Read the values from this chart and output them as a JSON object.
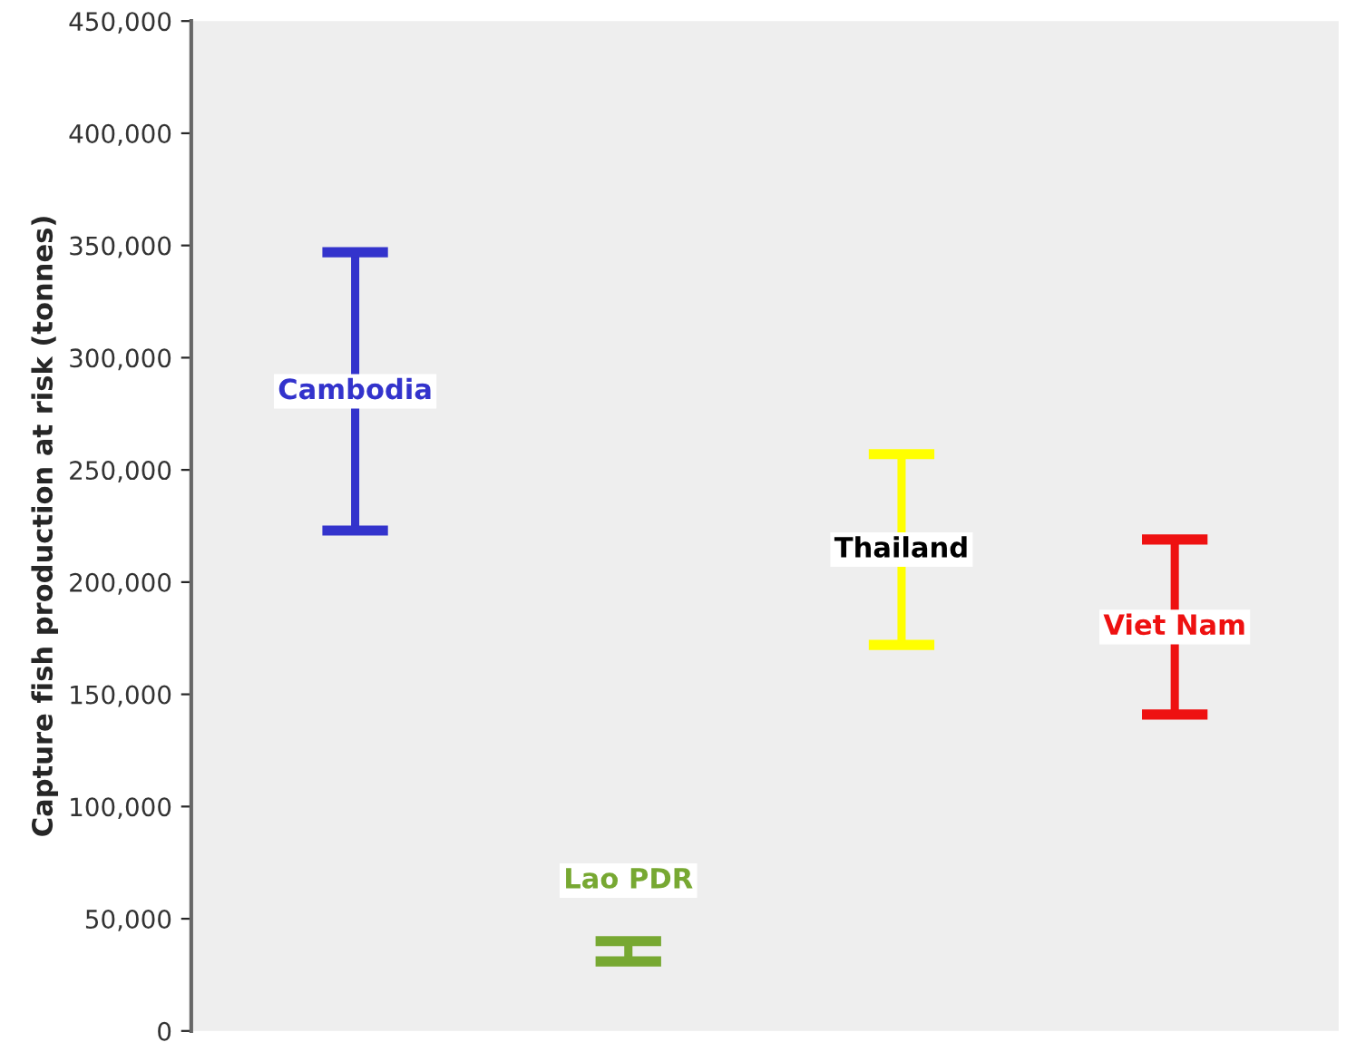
{
  "chart_data": {
    "type": "bar",
    "ylabel": "Capture fish production at risk (tonnes)",
    "categories": [
      "Cambodia",
      "Lao PDR",
      "Thailand",
      "Viet Nam"
    ],
    "base": [
      223000,
      31000,
      172000,
      141000
    ],
    "values": [
      124000,
      9000,
      85000,
      78000
    ],
    "colors": [
      "#3333cc",
      "#77a832",
      "#ffff00",
      "#ee1111"
    ],
    "ylim": [
      0,
      450000
    ],
    "yticks": [
      0,
      {
        "value": 50000,
        "label": "50,000"
      },
      {
        "value": 100000,
        "label": "100,000"
      },
      {
        "value": 150000,
        "label": "150,000"
      },
      {
        "value": 200000,
        "label": "200,000"
      },
      {
        "value": 250000,
        "label": "250,000"
      },
      {
        "value": 300000,
        "label": "300,000"
      },
      {
        "value": 350000,
        "label": "350,000"
      },
      {
        "value": 400000,
        "label": "400,000"
      },
      {
        "value": 450000,
        "label": "450,000"
      }
    ],
    "tick_labels": "y",
    "grid": false,
    "legend": false
  }
}
